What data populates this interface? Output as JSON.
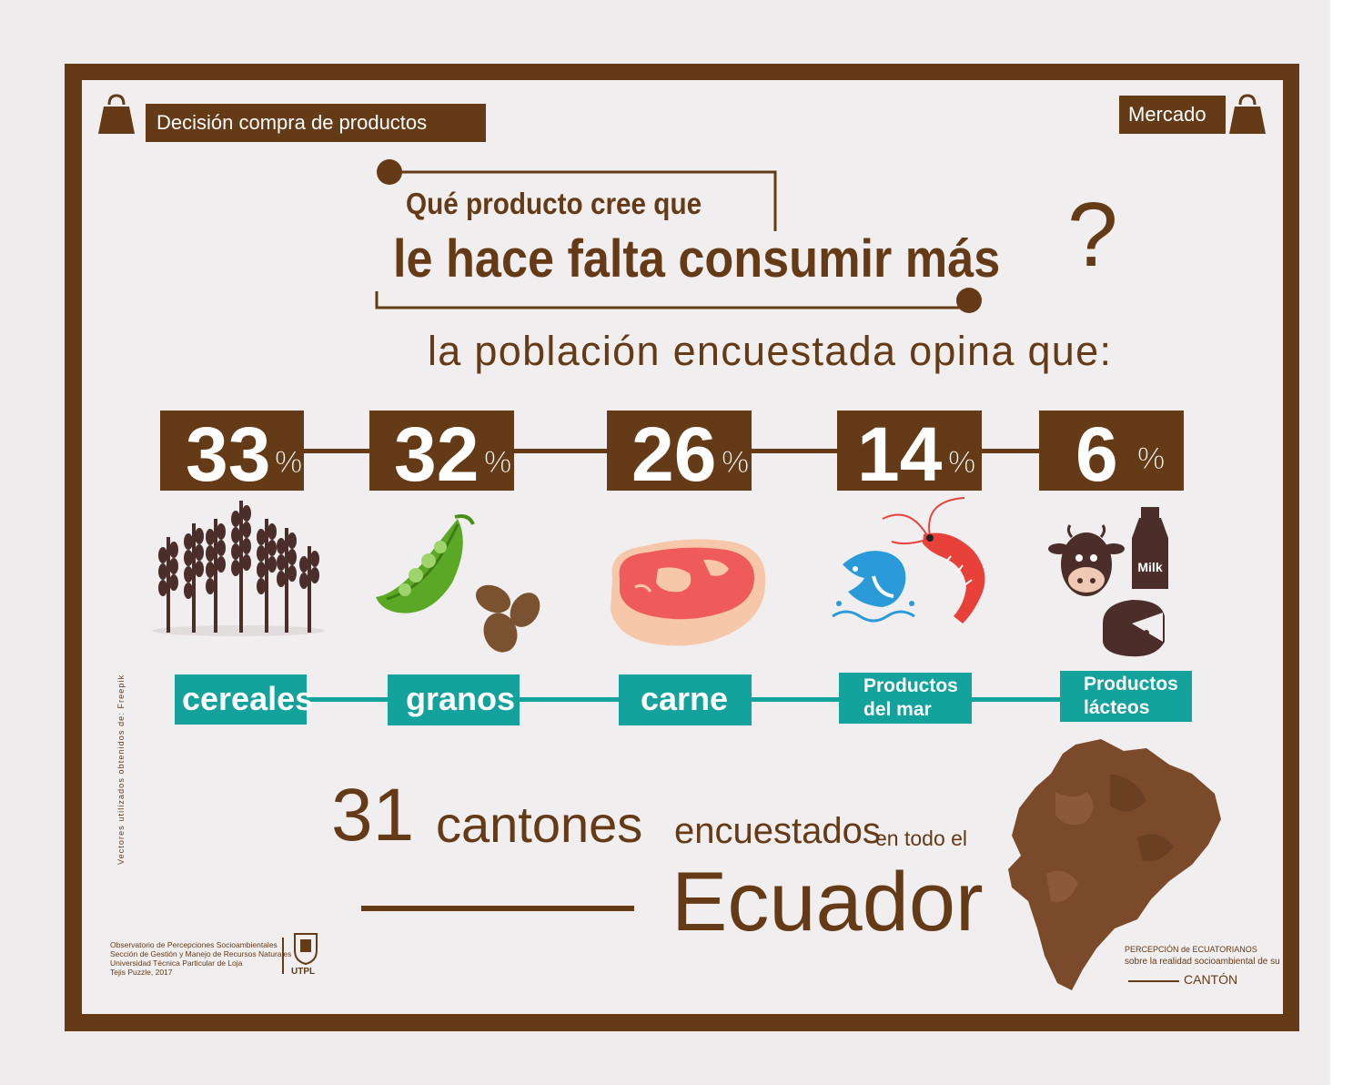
{
  "header": {
    "left_tag": "Decisión compra de productos",
    "right_tag": "Mercado"
  },
  "question": {
    "line1": "Qué producto cree que",
    "line2": "le hace falta consumir más",
    "mark": "?"
  },
  "subtitle": "la población encuestada opina que:",
  "percent_sign": "%",
  "items": [
    {
      "value": "33",
      "label": "cereales",
      "icon": "wheat-icon"
    },
    {
      "value": "32",
      "label": "granos",
      "icon": "peas-beans-icon"
    },
    {
      "value": "26",
      "label": "carne",
      "icon": "steak-icon"
    },
    {
      "value": "14",
      "label_line1": "Productos",
      "label_line2": "del mar",
      "icon": "fish-shrimp-icon"
    },
    {
      "value": "6",
      "label_line1": "Productos",
      "label_line2": "lácteos",
      "icon": "cow-milk-cheese-icon"
    }
  ],
  "milk_label": "Milk",
  "credit_vertical": "Vectores utilizados obtenidos de: Freepik",
  "cantones": {
    "number": "31",
    "word": "cantones",
    "encuestados": "encuestados",
    "todo": "en todo el",
    "country": "Ecuador"
  },
  "footer": {
    "lines": [
      "Observatorio de Percepciones Socioambientales",
      "Sección de Gestión y Manejo de Recursos Naturales",
      "Universidad Técnica Particular de Loja",
      "Tejis Puzzle, 2017"
    ],
    "utpl": "UTPL",
    "brand_line1": "PERCEPCIÓN de ECUATORIANOS",
    "brand_line2": "sobre la realidad socioambiental de su",
    "brand_line3": "CANTÓN"
  },
  "colors": {
    "brown": "#653a17",
    "teal": "#14a29c",
    "background": "#f0eeee"
  }
}
